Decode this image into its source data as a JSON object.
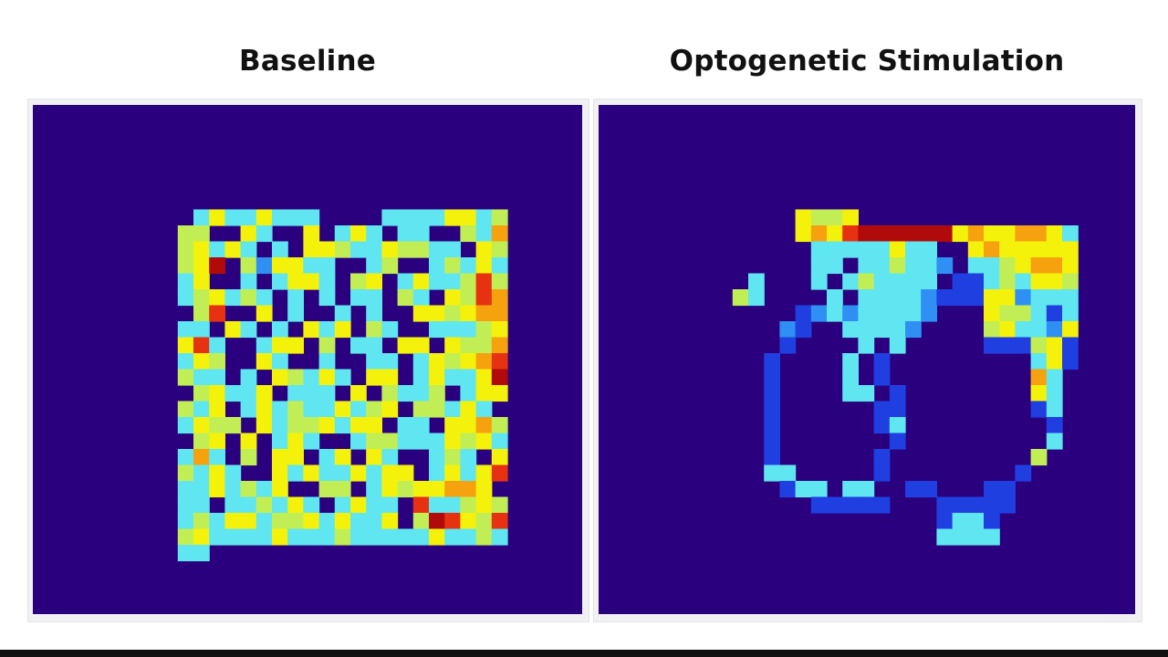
{
  "titles": {
    "left": "Baseline",
    "right": "Optogenetic Stimulation"
  },
  "colors": {
    "background": "#2a007f",
    "colormap": [
      "#2a007f",
      "#1f3fe0",
      "#2f8ff2",
      "#5fe6f0",
      "#c2ee55",
      "#f4f20a",
      "#f6a20e",
      "#e63210",
      "#b00a0a"
    ]
  },
  "chart_data": [
    {
      "type": "heatmap",
      "title": "Baseline",
      "colormap": "jet",
      "grid_size": [
        28,
        28
      ],
      "rows": [
        "0000000000000000000000000000",
        "0000000000000000000000000000",
        "0000000000000000000000000000",
        "0000035335333000033335534000",
        "0000440053005035303300436000",
        "0000453530305543354433054000",
        "0000458042553300340034353000",
        "0000350030355304503533474000",
        "0000345343030303304305476000",
        "0000047005030030300554566000",
        "0000330530305350430033345000",
        "0000573003550403305505446000",
        "0000354005300300330354567000",
        "0000433030543530550353358000",
        "0000045335033305043340355000",
        "0000435035343353450443530000",
        "0000354405344535503305564000",
        "0000045050353003443335453000",
        "0000363040550350530034305000",
        "0000435300535335355035357000",
        "0000335343500440354556650000",
        "0000330334353035330733454000",
        "0000343553445353350487547000",
        "0000453333533343333353343000",
        "0000330000000000000000000000",
        "0000000000000000000000000000",
        "0000000000000000000000000000",
        "0000000000000000000000000000"
      ]
    },
    {
      "type": "heatmap",
      "title": "Optogenetic Stimulation",
      "colormap": "jet",
      "grid_size": [
        28,
        28
      ],
      "rows": [
        "0000000000000000000000000000",
        "0000000000000000000000000000",
        "0000000000000000000000000000",
        "0000000054450000000000000000",
        "0000000056578888885655665300",
        "0000000003333353300565555500",
        "0000000003303343320334566500",
        "0000030003034333301134355400",
        "0000430000303333211155233300",
        "0000000012323333200054431300",
        "0000000210033332000045332500",
        "0000000100003030000011145100",
        "0000001000030100000000035100",
        "0000001000030100000000063000",
        "0000001000033010000000053000",
        "0000001000000110000000013000",
        "0000001000000130000000001000",
        "0000001000000010000000003000",
        "0000001000000100000000040000",
        "0000003300000100000000100000",
        "0000000133033001100011000000",
        "0000000001111100011111000000",
        "0000000000000000013310000000",
        "0000000000000000033330000000",
        "0000000000000000000000000000",
        "0000000000000000000000000000",
        "0000000000000000000000000000",
        "0000000000000000000000000000"
      ]
    }
  ]
}
